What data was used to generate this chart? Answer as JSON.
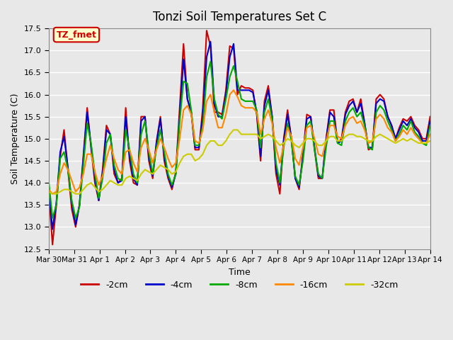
{
  "title": "Tonzi Soil Temperatures Set C",
  "xlabel": "Time",
  "ylabel": "Soil Temperature (C)",
  "ylim": [
    12.5,
    17.5
  ],
  "bg_color": "#e8e8e8",
  "plot_bg_color": "#e8e8e8",
  "grid_color": "white",
  "annotation_text": "TZ_fmet",
  "annotation_bg": "#ffffcc",
  "annotation_border": "#cc0000",
  "xtick_labels": [
    "Mar 30",
    "Mar 31",
    "Apr 1",
    "Apr 2",
    "Apr 3",
    "Apr 4",
    "Apr 5",
    "Apr 6",
    "Apr 7",
    "Apr 8",
    "Apr 9",
    "Apr 10",
    "Apr 11",
    "Apr 12",
    "Apr 13",
    "Apr 14"
  ],
  "legend_entries": [
    "-2cm",
    "-4cm",
    "-8cm",
    "-16cm",
    "-32cm"
  ],
  "legend_colors": [
    "#cc0000",
    "#0000cc",
    "#00aa00",
    "#ff8800",
    "#cccc00"
  ],
  "line_colors": [
    "#cc0000",
    "#0000cc",
    "#00aa00",
    "#ff8800",
    "#cccc00"
  ],
  "line_width": 1.5,
  "series": {
    "d2cm": [
      13.85,
      12.6,
      13.5,
      14.6,
      15.2,
      14.3,
      13.4,
      13.0,
      13.5,
      14.6,
      15.7,
      14.8,
      14.0,
      13.6,
      14.3,
      15.3,
      15.1,
      14.2,
      14.0,
      14.1,
      15.7,
      14.5,
      14.0,
      13.95,
      15.5,
      15.5,
      14.5,
      14.1,
      14.95,
      15.5,
      14.5,
      14.1,
      13.85,
      14.25,
      15.7,
      17.15,
      15.9,
      15.6,
      14.75,
      14.75,
      15.7,
      17.45,
      17.1,
      15.6,
      15.6,
      15.55,
      16.1,
      17.1,
      17.05,
      16.0,
      16.2,
      16.15,
      16.15,
      16.1,
      15.55,
      14.5,
      15.85,
      16.2,
      15.5,
      14.2,
      13.75,
      15.0,
      15.65,
      15.0,
      14.1,
      13.85,
      14.65,
      15.55,
      15.5,
      14.75,
      14.1,
      14.1,
      15.0,
      15.65,
      15.65,
      14.9,
      15.0,
      15.6,
      15.85,
      15.9,
      15.6,
      15.9,
      15.35,
      14.75,
      14.8,
      15.9,
      16.0,
      15.9,
      15.5,
      15.3,
      15.0,
      15.25,
      15.45,
      15.4,
      15.5,
      15.3,
      15.2,
      15.0,
      15.0,
      15.5
    ],
    "d4cm": [
      13.85,
      12.95,
      13.55,
      14.7,
      15.05,
      14.35,
      13.55,
      13.05,
      13.5,
      14.55,
      15.6,
      14.85,
      14.1,
      13.6,
      14.2,
      15.2,
      15.1,
      14.3,
      14.0,
      14.05,
      15.5,
      14.6,
      14.1,
      13.95,
      15.4,
      15.5,
      14.6,
      14.15,
      14.9,
      15.45,
      14.6,
      14.15,
      13.9,
      14.2,
      15.5,
      16.8,
      15.9,
      15.6,
      14.8,
      14.8,
      15.5,
      16.85,
      17.2,
      15.8,
      15.5,
      15.5,
      16.0,
      16.85,
      17.15,
      16.1,
      16.1,
      16.1,
      16.1,
      16.05,
      15.6,
      14.6,
      15.75,
      16.1,
      15.5,
      14.3,
      13.95,
      14.95,
      15.55,
      15.0,
      14.1,
      13.9,
      14.6,
      15.45,
      15.5,
      14.8,
      14.15,
      14.1,
      14.95,
      15.6,
      15.5,
      14.9,
      14.95,
      15.55,
      15.75,
      15.85,
      15.6,
      15.8,
      15.35,
      14.8,
      14.8,
      15.8,
      15.9,
      15.85,
      15.5,
      15.3,
      15.0,
      15.2,
      15.4,
      15.3,
      15.45,
      15.25,
      15.15,
      14.95,
      14.95,
      15.4
    ],
    "d8cm": [
      14.05,
      13.2,
      13.5,
      14.55,
      14.7,
      14.3,
      13.6,
      13.2,
      13.45,
      14.4,
      15.35,
      14.9,
      14.2,
      13.65,
      14.1,
      14.9,
      15.1,
      14.4,
      14.1,
      14.05,
      15.2,
      14.75,
      14.2,
      14.0,
      15.1,
      15.4,
      14.7,
      14.2,
      14.8,
      15.2,
      14.7,
      14.2,
      13.95,
      14.2,
      15.4,
      16.3,
      16.25,
      15.65,
      14.85,
      14.85,
      15.3,
      16.4,
      16.75,
      15.9,
      15.55,
      15.45,
      15.9,
      16.4,
      16.65,
      16.3,
      15.9,
      15.85,
      15.85,
      15.85,
      15.65,
      14.8,
      15.6,
      15.9,
      15.45,
      14.45,
      14.0,
      14.8,
      15.35,
      14.95,
      14.15,
      13.95,
      14.5,
      15.3,
      15.4,
      14.75,
      14.2,
      14.1,
      14.8,
      15.4,
      15.4,
      14.9,
      14.85,
      15.4,
      15.6,
      15.7,
      15.5,
      15.6,
      15.3,
      14.8,
      14.75,
      15.6,
      15.75,
      15.65,
      15.4,
      15.2,
      14.95,
      15.1,
      15.3,
      15.2,
      15.4,
      15.15,
      15.05,
      14.9,
      14.85,
      15.3
    ],
    "d16cm": [
      13.85,
      13.75,
      13.8,
      14.2,
      14.45,
      14.3,
      14.05,
      13.8,
      13.9,
      14.2,
      14.65,
      14.65,
      14.25,
      13.95,
      14.15,
      14.55,
      14.85,
      14.55,
      14.3,
      14.2,
      14.7,
      14.75,
      14.45,
      14.25,
      14.8,
      15.0,
      14.75,
      14.45,
      14.75,
      15.0,
      14.8,
      14.55,
      14.35,
      14.45,
      15.0,
      15.65,
      15.75,
      15.55,
      14.95,
      14.9,
      15.2,
      15.85,
      16.0,
      15.6,
      15.25,
      15.25,
      15.55,
      16.0,
      16.1,
      15.95,
      15.75,
      15.7,
      15.7,
      15.7,
      15.6,
      15.1,
      15.45,
      15.65,
      15.35,
      14.8,
      14.45,
      14.85,
      15.25,
      15.05,
      14.55,
      14.4,
      14.8,
      15.25,
      15.3,
      15.0,
      14.65,
      14.6,
      14.95,
      15.3,
      15.3,
      15.05,
      15.0,
      15.3,
      15.45,
      15.5,
      15.35,
      15.4,
      15.2,
      14.9,
      14.95,
      15.45,
      15.55,
      15.45,
      15.25,
      15.15,
      14.95,
      15.05,
      15.2,
      15.1,
      15.25,
      15.1,
      15.0,
      14.9,
      14.9,
      15.1
    ],
    "d32cm": [
      13.8,
      13.75,
      13.75,
      13.8,
      13.85,
      13.85,
      13.8,
      13.75,
      13.75,
      13.85,
      13.95,
      14.0,
      13.9,
      13.8,
      13.85,
      13.95,
      14.05,
      14.0,
      13.95,
      13.95,
      14.1,
      14.15,
      14.1,
      14.05,
      14.2,
      14.3,
      14.25,
      14.2,
      14.3,
      14.4,
      14.35,
      14.3,
      14.2,
      14.25,
      14.45,
      14.6,
      14.65,
      14.65,
      14.5,
      14.55,
      14.65,
      14.85,
      14.95,
      14.95,
      14.85,
      14.85,
      14.95,
      15.1,
      15.2,
      15.2,
      15.1,
      15.1,
      15.1,
      15.1,
      15.1,
      15.0,
      15.05,
      15.1,
      15.05,
      14.95,
      14.85,
      14.9,
      15.0,
      14.95,
      14.85,
      14.8,
      14.9,
      15.0,
      15.0,
      14.95,
      14.85,
      14.85,
      14.95,
      15.05,
      15.05,
      14.95,
      14.95,
      15.05,
      15.1,
      15.1,
      15.05,
      15.05,
      15.0,
      14.95,
      14.95,
      15.05,
      15.1,
      15.05,
      15.0,
      14.95,
      14.9,
      14.95,
      15.0,
      14.95,
      15.0,
      14.95,
      14.9,
      14.9,
      14.9,
      14.95
    ]
  }
}
